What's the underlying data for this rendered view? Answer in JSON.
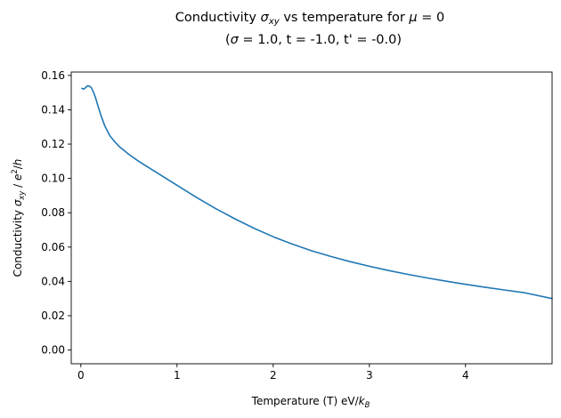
{
  "chart_data": {
    "type": "line",
    "title": {
      "line1": {
        "pre": "Conductivity ",
        "sym": "σ",
        "sub": "xy",
        "mid": " vs temperature for ",
        "mu": "μ",
        "post": " = 0"
      },
      "line2": {
        "pre": "(",
        "sym": "σ",
        "post": " = 1.0, t = -1.0, t' = -0.0)"
      }
    },
    "xlabel": {
      "pre": "Temperature (T) eV/",
      "sym": "k",
      "sub": "B"
    },
    "ylabel": {
      "pre": "Conductivity ",
      "sym": "σ",
      "sub": "xy",
      "mid": " / ",
      "e": "e",
      "sup": "2",
      "post": "/",
      "h": "h"
    },
    "xlim": [
      -0.1,
      4.9
    ],
    "ylim": [
      -0.008,
      0.162
    ],
    "xticks": [
      0,
      1,
      2,
      3,
      4
    ],
    "xtick_labels": [
      "0",
      "1",
      "2",
      "3",
      "4"
    ],
    "yticks": [
      0.0,
      0.02,
      0.04,
      0.06,
      0.08,
      0.1,
      0.12,
      0.14,
      0.16
    ],
    "ytick_labels": [
      "0.00",
      "0.02",
      "0.04",
      "0.06",
      "0.08",
      "0.10",
      "0.12",
      "0.14",
      "0.16"
    ],
    "grid": false,
    "series": [
      {
        "color": "#1f77b4",
        "x": [
          0.01,
          0.03,
          0.05,
          0.07,
          0.09,
          0.11,
          0.13,
          0.15,
          0.18,
          0.21,
          0.25,
          0.3,
          0.35,
          0.4,
          0.5,
          0.6,
          0.7,
          0.8,
          0.9,
          1.0,
          1.2,
          1.4,
          1.6,
          1.8,
          2.0,
          2.2,
          2.4,
          2.6,
          2.8,
          3.0,
          3.2,
          3.4,
          3.6,
          3.8,
          4.0,
          4.2,
          4.4,
          4.6,
          4.9
        ],
        "y": [
          0.1525,
          0.152,
          0.153,
          0.154,
          0.1538,
          0.1528,
          0.1505,
          0.1475,
          0.142,
          0.1365,
          0.1305,
          0.125,
          0.1215,
          0.1185,
          0.114,
          0.11,
          0.1065,
          0.103,
          0.0995,
          0.096,
          0.089,
          0.0825,
          0.0765,
          0.071,
          0.066,
          0.0617,
          0.0578,
          0.0545,
          0.0515,
          0.0488,
          0.0463,
          0.0441,
          0.042,
          0.0401,
          0.0383,
          0.0366,
          0.035,
          0.0335,
          0.03
        ]
      }
    ]
  }
}
